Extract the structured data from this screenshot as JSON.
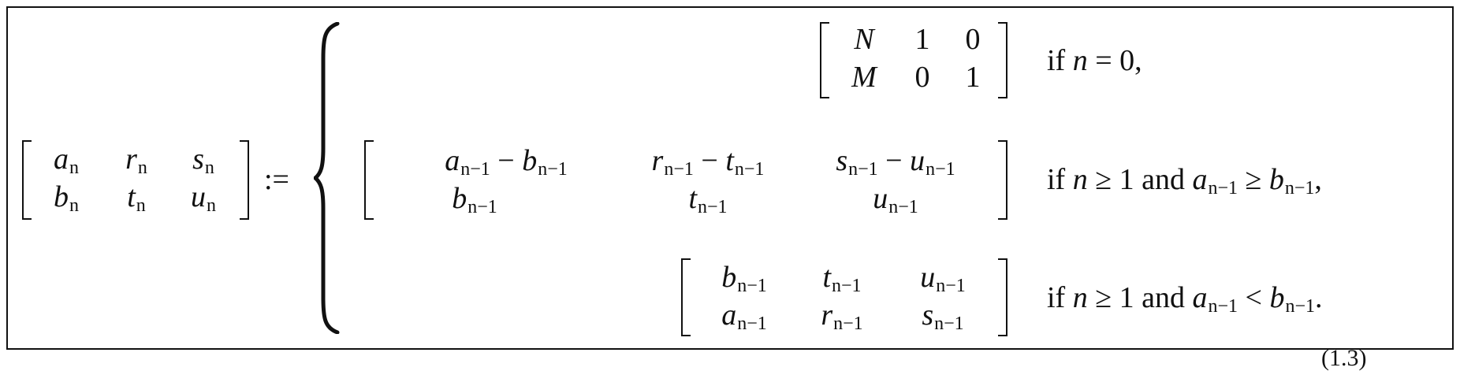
{
  "lhs": {
    "rows": [
      [
        "a",
        "n",
        "r",
        "n",
        "s",
        "n"
      ],
      [
        "b",
        "n",
        "t",
        "n",
        "u",
        "n"
      ]
    ]
  },
  "defined_as": ":=",
  "cases": [
    {
      "matrix": [
        [
          "N",
          "1",
          "0"
        ],
        [
          "M",
          "0",
          "1"
        ]
      ],
      "condition": "if n = 0,"
    },
    {
      "matrix": [
        [
          "a",
          "n−1",
          "b",
          "n−1",
          "r",
          "n−1",
          "t",
          "n−1",
          "s",
          "n−1",
          "u",
          "n−1"
        ],
        [
          "b",
          "n−1",
          "t",
          "n−1",
          "u",
          "n−1"
        ]
      ],
      "condition": "if n ≥ 1 and a n−1 ≥ b n−1,"
    },
    {
      "matrix": [
        [
          "b",
          "n−1",
          "t",
          "n−1",
          "u",
          "n−1"
        ],
        [
          "a",
          "n−1",
          "r",
          "n−1",
          "s",
          "n−1"
        ]
      ],
      "condition": "if n ≥ 1 and a n−1 < b n−1."
    }
  ],
  "equation_number": "(1.3)",
  "text": {
    "minus": "−",
    "if": "if",
    "and": "and",
    "eq": "=",
    "geq": "≥",
    "lt": "<",
    "zero_comma": "0,",
    "one": "1",
    "comma": ",",
    "period": "."
  }
}
